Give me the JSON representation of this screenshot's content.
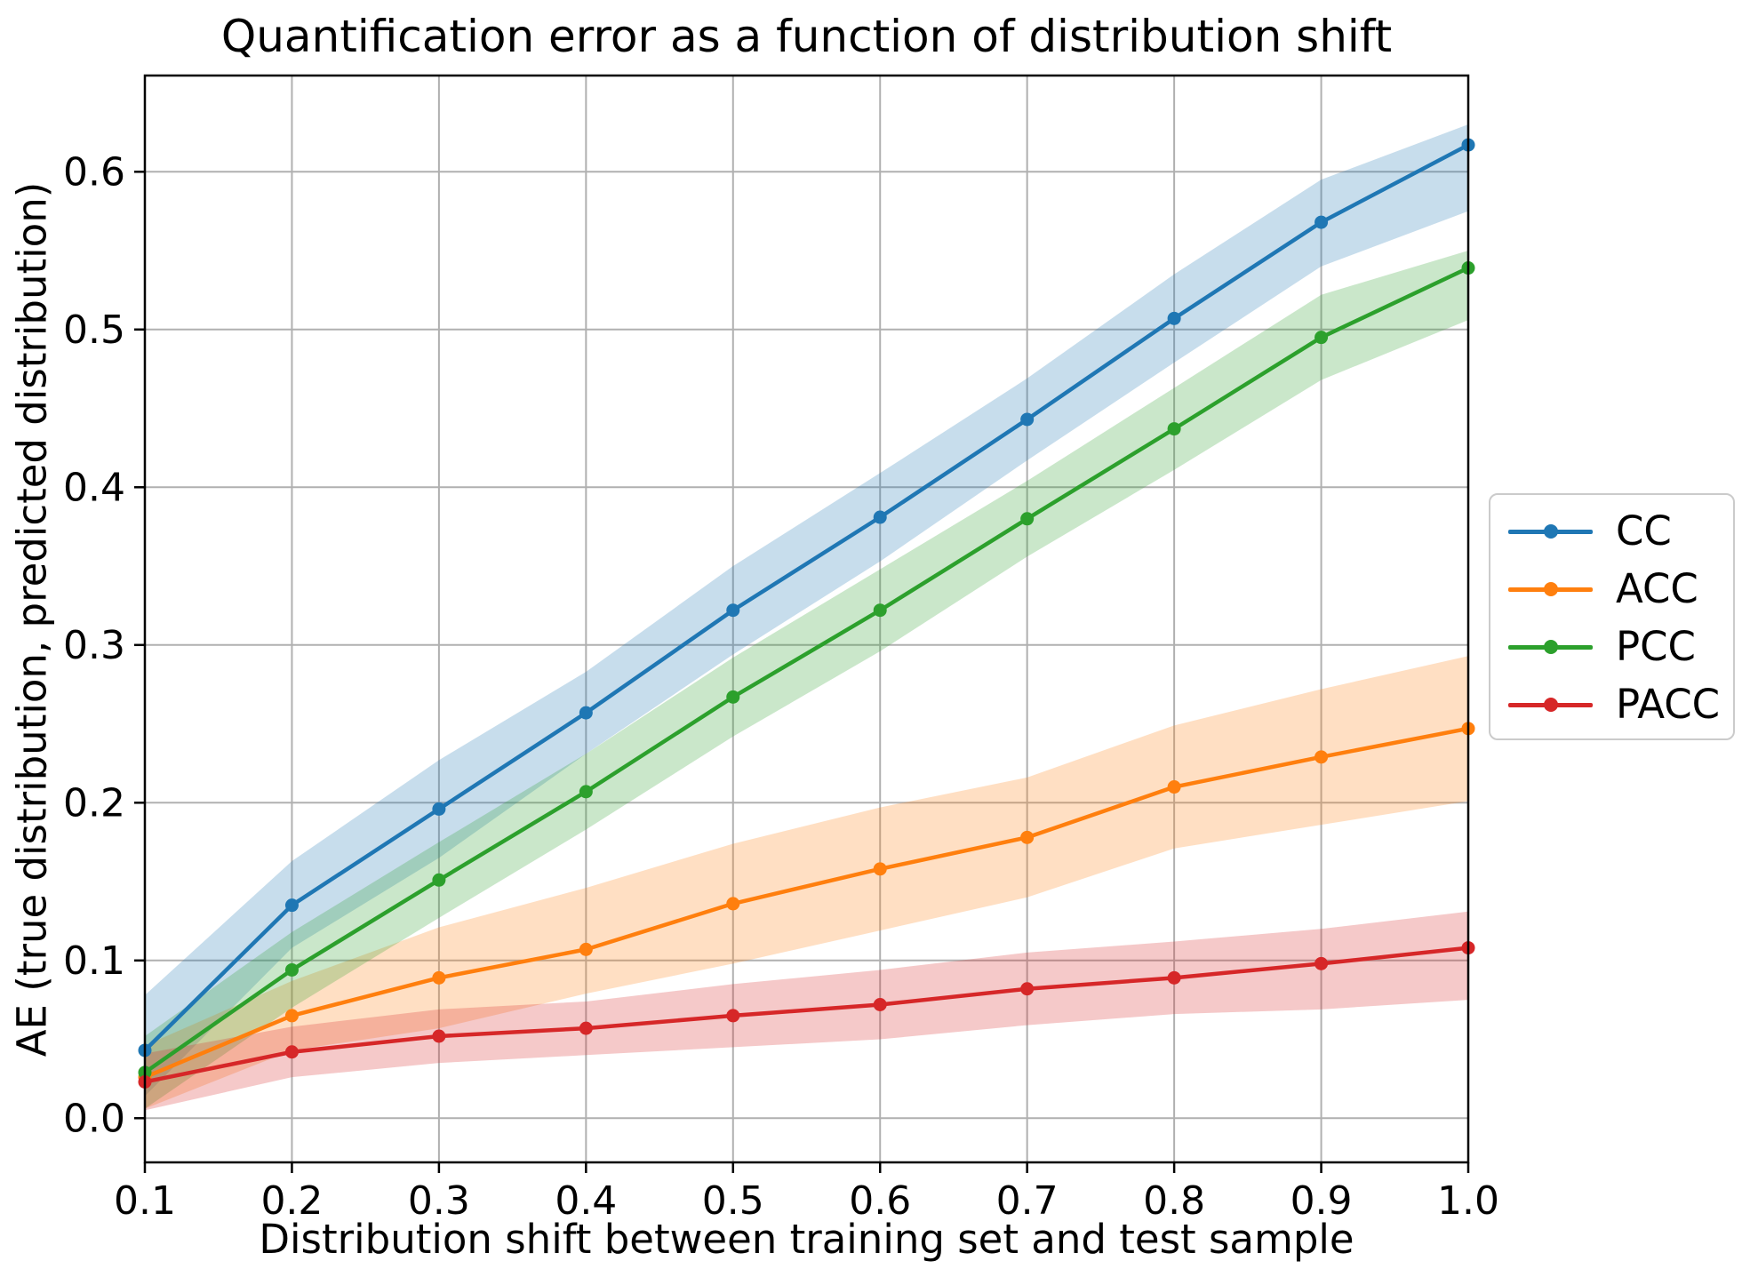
{
  "chart_data": {
    "type": "line",
    "title": "Quantification error as a function of distribution shift",
    "xlabel": "Distribution shift between training set and test sample",
    "ylabel": "AE (true distribution, predicted distribution)",
    "grid": true,
    "grid_color": "#b0b0b0",
    "legend_position": "center-right outside axes",
    "band_alpha": 0.25,
    "xlim": [
      0.1,
      1.0
    ],
    "ylim": [
      -0.028,
      0.661
    ],
    "x": [
      0.1,
      0.2,
      0.3,
      0.4,
      0.5,
      0.6,
      0.7,
      0.8,
      0.9,
      1.0
    ],
    "x_tick_labels": [
      "0.1",
      "0.2",
      "0.3",
      "0.4",
      "0.5",
      "0.6",
      "0.7",
      "0.8",
      "0.9",
      "1.0"
    ],
    "y_ticks": [
      0.0,
      0.1,
      0.2,
      0.3,
      0.4,
      0.5,
      0.6
    ],
    "y_tick_labels": [
      "0.0",
      "0.1",
      "0.2",
      "0.3",
      "0.4",
      "0.5",
      "0.6"
    ],
    "series": [
      {
        "name": "CC",
        "color": "#1f77b4",
        "values": [
          0.043,
          0.135,
          0.196,
          0.257,
          0.322,
          0.381,
          0.443,
          0.507,
          0.568,
          0.617
        ],
        "band_lower": [
          0.014,
          0.108,
          0.165,
          0.231,
          0.294,
          0.353,
          0.417,
          0.479,
          0.54,
          0.575
        ],
        "band_upper": [
          0.078,
          0.163,
          0.227,
          0.283,
          0.35,
          0.409,
          0.469,
          0.535,
          0.595,
          0.63
        ]
      },
      {
        "name": "ACC",
        "color": "#ff7f0e",
        "values": [
          0.026,
          0.065,
          0.089,
          0.107,
          0.136,
          0.158,
          0.178,
          0.21,
          0.229,
          0.247
        ],
        "band_lower": [
          0.006,
          0.043,
          0.057,
          0.079,
          0.098,
          0.119,
          0.14,
          0.171,
          0.186,
          0.201
        ],
        "band_upper": [
          0.046,
          0.087,
          0.121,
          0.146,
          0.174,
          0.197,
          0.216,
          0.249,
          0.272,
          0.293
        ]
      },
      {
        "name": "PCC",
        "color": "#2ca02c",
        "values": [
          0.029,
          0.094,
          0.151,
          0.207,
          0.267,
          0.322,
          0.38,
          0.437,
          0.495,
          0.539
        ],
        "band_lower": [
          0.006,
          0.07,
          0.127,
          0.183,
          0.242,
          0.296,
          0.356,
          0.411,
          0.468,
          0.506
        ],
        "band_upper": [
          0.052,
          0.118,
          0.175,
          0.231,
          0.292,
          0.348,
          0.404,
          0.463,
          0.522,
          0.55
        ]
      },
      {
        "name": "PACC",
        "color": "#d62728",
        "values": [
          0.023,
          0.042,
          0.052,
          0.057,
          0.065,
          0.072,
          0.082,
          0.089,
          0.098,
          0.108
        ],
        "band_lower": [
          0.005,
          0.026,
          0.035,
          0.04,
          0.045,
          0.05,
          0.059,
          0.066,
          0.069,
          0.075
        ],
        "band_upper": [
          0.041,
          0.058,
          0.069,
          0.074,
          0.085,
          0.094,
          0.105,
          0.112,
          0.12,
          0.131
        ]
      }
    ]
  }
}
